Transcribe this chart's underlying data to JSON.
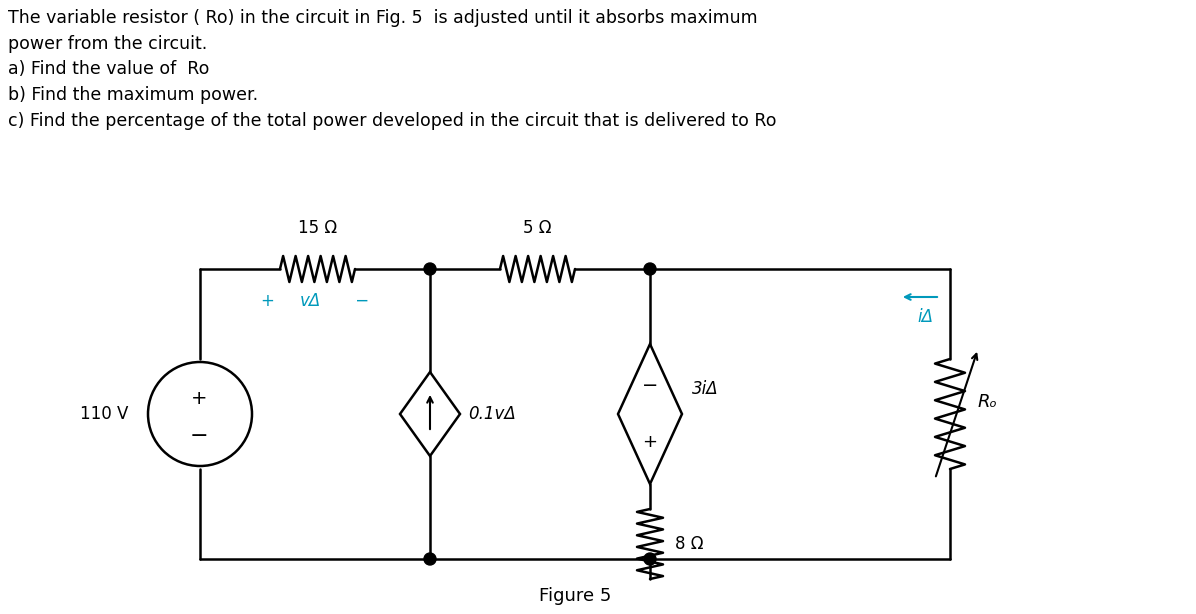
{
  "title_text": "The variable resistor ( Ro) in the circuit in Fig. 5  is adjusted until it absorbs maximum\npower from the circuit.\na) Find the value of  Ro\nb) Find the maximum power.\nc) Find the percentage of the total power developed in the circuit that is delivered to Ro",
  "figure_caption": "Figure 5",
  "bg_color": "#ffffff",
  "text_color": "#000000",
  "cyan_color": "#00aacc",
  "circuit_color": "#000000",
  "resistor_15_label": "15 Ω",
  "resistor_5_label": "5 Ω",
  "resistor_8_label": "8 Ω",
  "source_label": "110 V",
  "dep_current_label": "0.1vΔ",
  "dep_voltage_label": "3iΔ",
  "var_resistor_label": "Rₒ",
  "ia_label": "iΔ",
  "va_label": "vΔ"
}
